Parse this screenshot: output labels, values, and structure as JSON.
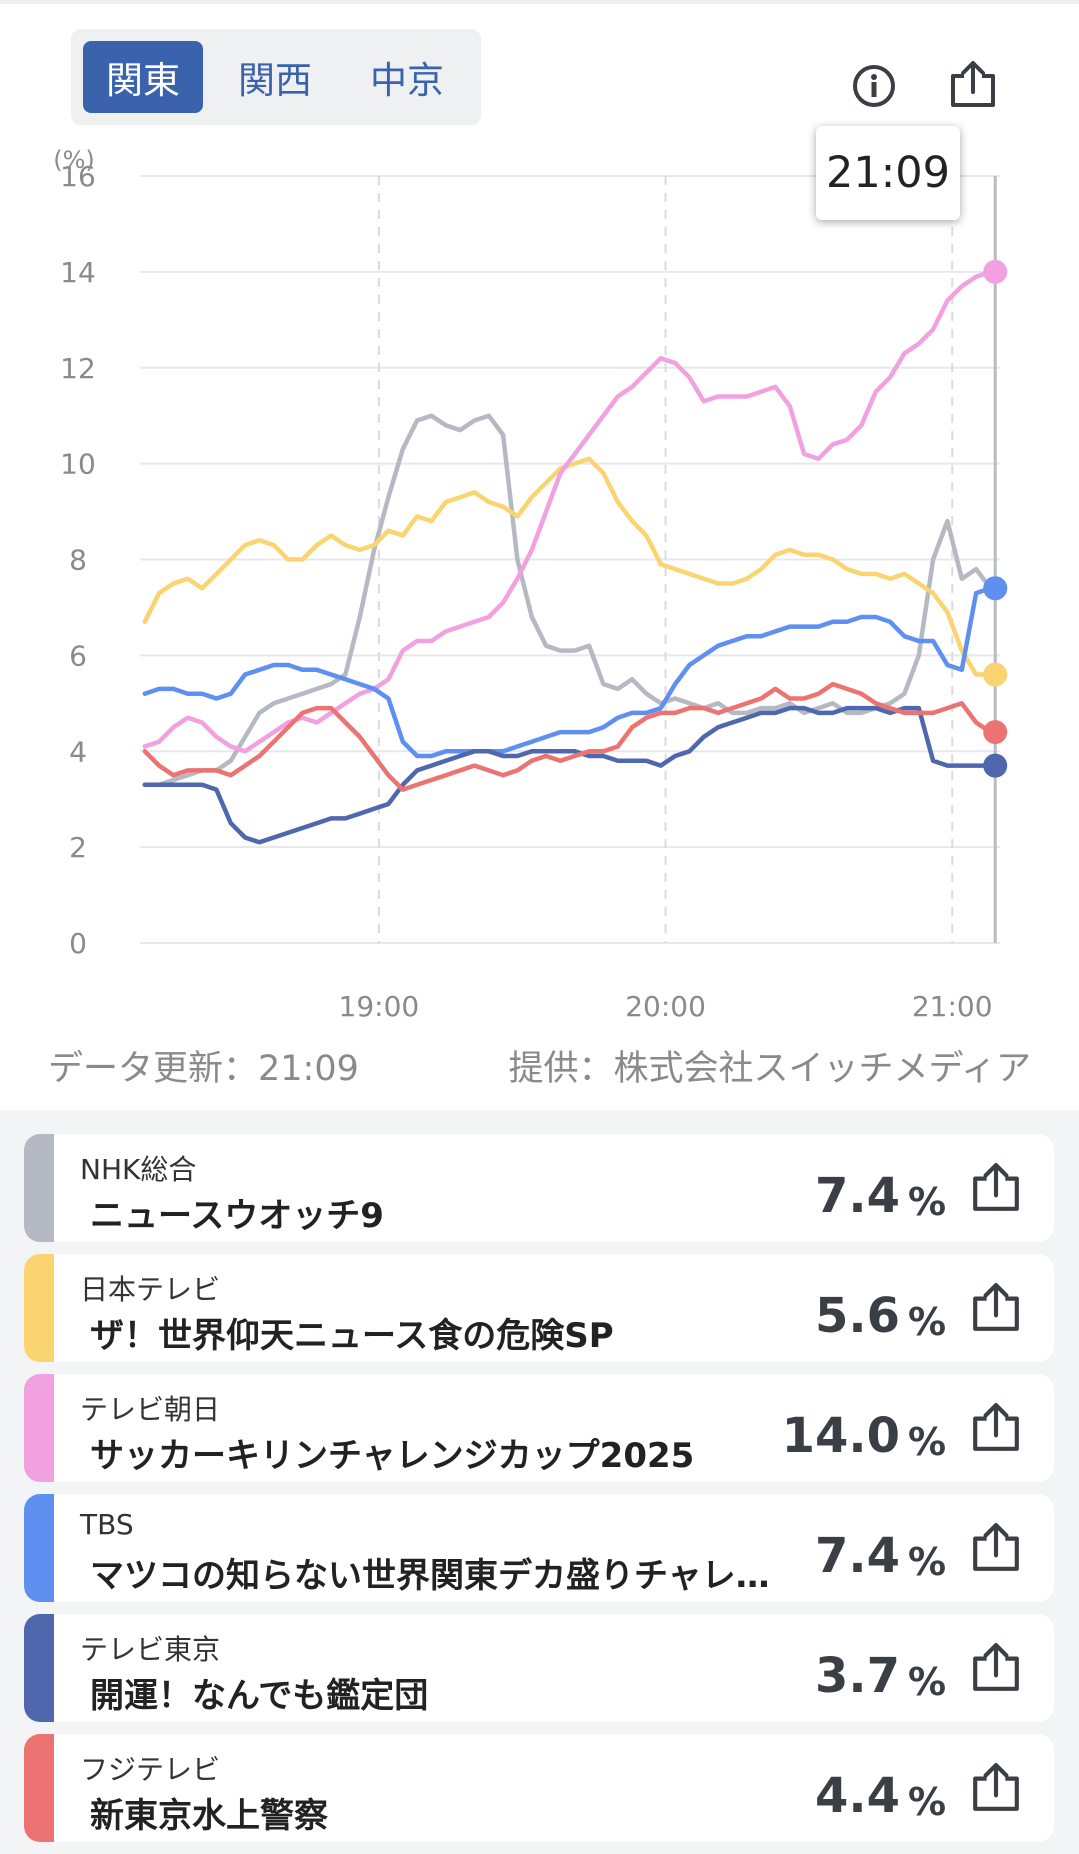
{
  "region_tabs": [
    {
      "label": "関東",
      "active": true
    },
    {
      "label": "関西",
      "active": false
    },
    {
      "label": "中京",
      "active": false
    }
  ],
  "header_icons": {
    "info": "info-icon",
    "share": "share-icon"
  },
  "tooltip_time": "21:09",
  "chart_data": {
    "type": "line",
    "y_unit": "(%)",
    "ylim": [
      0,
      16
    ],
    "yticks": [
      "0",
      "2",
      "4",
      "6",
      "8",
      "10",
      "12",
      "14",
      "16"
    ],
    "xticks": [
      "19:00",
      "20:00",
      "21:00"
    ],
    "x_range_minutes": [
      1090,
      1270
    ],
    "cursor_minute": 1269,
    "grid": true,
    "series": [
      {
        "name": "NHK総合",
        "color": "#b4b9c2",
        "x": [
          1091,
          1094,
          1097,
          1100,
          1103,
          1106,
          1109,
          1112,
          1115,
          1118,
          1121,
          1124,
          1127,
          1130,
          1133,
          1136,
          1139,
          1142,
          1145,
          1148,
          1151,
          1154,
          1157,
          1160,
          1163,
          1166,
          1169,
          1172,
          1175,
          1178,
          1181,
          1184,
          1187,
          1190,
          1193,
          1196,
          1199,
          1202,
          1205,
          1208,
          1211,
          1214,
          1217,
          1220,
          1223,
          1226,
          1229,
          1232,
          1235,
          1238,
          1241,
          1244,
          1247,
          1250,
          1253,
          1256,
          1259,
          1262,
          1265,
          1268
        ],
        "y": [
          3.3,
          3.3,
          3.4,
          3.5,
          3.6,
          3.6,
          3.8,
          4.3,
          4.8,
          5.0,
          5.1,
          5.2,
          5.3,
          5.4,
          5.6,
          6.8,
          8.2,
          9.3,
          10.3,
          10.9,
          11.0,
          10.8,
          10.7,
          10.9,
          11.0,
          10.6,
          8.0,
          6.8,
          6.2,
          6.1,
          6.1,
          6.2,
          5.4,
          5.3,
          5.5,
          5.2,
          5.0,
          5.1,
          5.0,
          4.9,
          5.0,
          4.8,
          4.8,
          4.9,
          4.9,
          5.0,
          4.8,
          4.9,
          5.0,
          4.8,
          4.8,
          4.9,
          5.0,
          5.2,
          6.0,
          8.0,
          8.8,
          7.6,
          7.8,
          7.4
        ]
      },
      {
        "name": "日本テレビ",
        "color": "#fbd472",
        "x": [
          1091,
          1094,
          1097,
          1100,
          1103,
          1106,
          1109,
          1112,
          1115,
          1118,
          1121,
          1124,
          1127,
          1130,
          1133,
          1136,
          1139,
          1142,
          1145,
          1148,
          1151,
          1154,
          1157,
          1160,
          1163,
          1166,
          1169,
          1172,
          1175,
          1178,
          1181,
          1184,
          1187,
          1190,
          1193,
          1196,
          1199,
          1202,
          1205,
          1208,
          1211,
          1214,
          1217,
          1220,
          1223,
          1226,
          1229,
          1232,
          1235,
          1238,
          1241,
          1244,
          1247,
          1250,
          1253,
          1256,
          1259,
          1262,
          1265,
          1268
        ],
        "y": [
          6.7,
          7.3,
          7.5,
          7.6,
          7.4,
          7.7,
          8.0,
          8.3,
          8.4,
          8.3,
          8.0,
          8.0,
          8.3,
          8.5,
          8.3,
          8.2,
          8.3,
          8.6,
          8.5,
          8.9,
          8.8,
          9.2,
          9.3,
          9.4,
          9.2,
          9.1,
          8.9,
          9.3,
          9.6,
          9.9,
          10.0,
          10.1,
          9.8,
          9.2,
          8.8,
          8.5,
          7.9,
          7.8,
          7.7,
          7.6,
          7.5,
          7.5,
          7.6,
          7.8,
          8.1,
          8.2,
          8.1,
          8.1,
          8.0,
          7.8,
          7.7,
          7.7,
          7.6,
          7.7,
          7.5,
          7.3,
          6.9,
          6.1,
          5.6,
          5.6
        ]
      },
      {
        "name": "テレビ朝日",
        "color": "#f2a1e0",
        "x": [
          1091,
          1094,
          1097,
          1100,
          1103,
          1106,
          1109,
          1112,
          1115,
          1118,
          1121,
          1124,
          1127,
          1130,
          1133,
          1136,
          1139,
          1142,
          1145,
          1148,
          1151,
          1154,
          1157,
          1160,
          1163,
          1166,
          1169,
          1172,
          1175,
          1178,
          1181,
          1184,
          1187,
          1190,
          1193,
          1196,
          1199,
          1202,
          1205,
          1208,
          1211,
          1214,
          1217,
          1220,
          1223,
          1226,
          1229,
          1232,
          1235,
          1238,
          1241,
          1244,
          1247,
          1250,
          1253,
          1256,
          1259,
          1262,
          1265,
          1268
        ],
        "y": [
          4.1,
          4.2,
          4.5,
          4.7,
          4.6,
          4.3,
          4.1,
          4.0,
          4.2,
          4.4,
          4.6,
          4.7,
          4.6,
          4.8,
          5.0,
          5.2,
          5.3,
          5.5,
          6.1,
          6.3,
          6.3,
          6.5,
          6.6,
          6.7,
          6.8,
          7.1,
          7.6,
          8.2,
          9.0,
          9.8,
          10.2,
          10.6,
          11.0,
          11.4,
          11.6,
          11.9,
          12.2,
          12.1,
          11.8,
          11.3,
          11.4,
          11.4,
          11.4,
          11.5,
          11.6,
          11.2,
          10.2,
          10.1,
          10.4,
          10.5,
          10.8,
          11.5,
          11.8,
          12.3,
          12.5,
          12.8,
          13.4,
          13.7,
          13.9,
          14.0
        ]
      },
      {
        "name": "TBS",
        "color": "#5f8ff0",
        "x": [
          1091,
          1094,
          1097,
          1100,
          1103,
          1106,
          1109,
          1112,
          1115,
          1118,
          1121,
          1124,
          1127,
          1130,
          1133,
          1136,
          1139,
          1142,
          1145,
          1148,
          1151,
          1154,
          1157,
          1160,
          1163,
          1166,
          1169,
          1172,
          1175,
          1178,
          1181,
          1184,
          1187,
          1190,
          1193,
          1196,
          1199,
          1202,
          1205,
          1208,
          1211,
          1214,
          1217,
          1220,
          1223,
          1226,
          1229,
          1232,
          1235,
          1238,
          1241,
          1244,
          1247,
          1250,
          1253,
          1256,
          1259,
          1262,
          1265,
          1268
        ],
        "y": [
          5.2,
          5.3,
          5.3,
          5.2,
          5.2,
          5.1,
          5.2,
          5.6,
          5.7,
          5.8,
          5.8,
          5.7,
          5.7,
          5.6,
          5.5,
          5.4,
          5.3,
          5.1,
          4.2,
          3.9,
          3.9,
          4.0,
          4.0,
          4.0,
          4.0,
          4.0,
          4.1,
          4.2,
          4.3,
          4.4,
          4.4,
          4.4,
          4.5,
          4.7,
          4.8,
          4.8,
          4.9,
          5.4,
          5.8,
          6.0,
          6.2,
          6.3,
          6.4,
          6.4,
          6.5,
          6.6,
          6.6,
          6.6,
          6.7,
          6.7,
          6.8,
          6.8,
          6.7,
          6.4,
          6.3,
          6.3,
          5.8,
          5.7,
          7.3,
          7.4
        ]
      },
      {
        "name": "テレビ東京",
        "color": "#4f68ad",
        "x": [
          1091,
          1094,
          1097,
          1100,
          1103,
          1106,
          1109,
          1112,
          1115,
          1118,
          1121,
          1124,
          1127,
          1130,
          1133,
          1136,
          1139,
          1142,
          1145,
          1148,
          1151,
          1154,
          1157,
          1160,
          1163,
          1166,
          1169,
          1172,
          1175,
          1178,
          1181,
          1184,
          1187,
          1190,
          1193,
          1196,
          1199,
          1202,
          1205,
          1208,
          1211,
          1214,
          1217,
          1220,
          1223,
          1226,
          1229,
          1232,
          1235,
          1238,
          1241,
          1244,
          1247,
          1250,
          1253,
          1256,
          1259,
          1262,
          1265,
          1268
        ],
        "y": [
          3.3,
          3.3,
          3.3,
          3.3,
          3.3,
          3.2,
          2.5,
          2.2,
          2.1,
          2.2,
          2.3,
          2.4,
          2.5,
          2.6,
          2.6,
          2.7,
          2.8,
          2.9,
          3.3,
          3.6,
          3.7,
          3.8,
          3.9,
          4.0,
          4.0,
          3.9,
          3.9,
          4.0,
          4.0,
          4.0,
          4.0,
          3.9,
          3.9,
          3.8,
          3.8,
          3.8,
          3.7,
          3.9,
          4.0,
          4.3,
          4.5,
          4.6,
          4.7,
          4.8,
          4.8,
          4.9,
          4.9,
          4.8,
          4.8,
          4.9,
          4.9,
          4.9,
          4.8,
          4.9,
          4.9,
          3.8,
          3.7,
          3.7,
          3.7,
          3.7
        ]
      },
      {
        "name": "フジテレビ",
        "color": "#ed7373",
        "x": [
          1091,
          1094,
          1097,
          1100,
          1103,
          1106,
          1109,
          1112,
          1115,
          1118,
          1121,
          1124,
          1127,
          1130,
          1133,
          1136,
          1139,
          1142,
          1145,
          1148,
          1151,
          1154,
          1157,
          1160,
          1163,
          1166,
          1169,
          1172,
          1175,
          1178,
          1181,
          1184,
          1187,
          1190,
          1193,
          1196,
          1199,
          1202,
          1205,
          1208,
          1211,
          1214,
          1217,
          1220,
          1223,
          1226,
          1229,
          1232,
          1235,
          1238,
          1241,
          1244,
          1247,
          1250,
          1253,
          1256,
          1259,
          1262,
          1265,
          1268
        ],
        "y": [
          4.0,
          3.7,
          3.5,
          3.6,
          3.6,
          3.6,
          3.5,
          3.7,
          3.9,
          4.2,
          4.5,
          4.8,
          4.9,
          4.9,
          4.6,
          4.3,
          3.9,
          3.5,
          3.2,
          3.3,
          3.4,
          3.5,
          3.6,
          3.7,
          3.6,
          3.5,
          3.6,
          3.8,
          3.9,
          3.8,
          3.9,
          4.0,
          4.0,
          4.1,
          4.5,
          4.7,
          4.8,
          4.8,
          4.9,
          4.9,
          4.8,
          4.9,
          5.0,
          5.1,
          5.3,
          5.1,
          5.1,
          5.2,
          5.4,
          5.3,
          5.2,
          5.0,
          4.9,
          4.8,
          4.8,
          4.8,
          4.9,
          5.0,
          4.6,
          4.4
        ]
      }
    ]
  },
  "footer": {
    "updated": "データ更新：21:09",
    "provider": "提供：株式会社スイッチメディア"
  },
  "programs": [
    {
      "channel": "NHK総合",
      "title": "ニュースウオッチ9",
      "rating": "7.4",
      "unit": "%",
      "color": "#b4b9c2"
    },
    {
      "channel": "日本テレビ",
      "title": "ザ！世界仰天ニュース食の危険SP",
      "rating": "5.6",
      "unit": "%",
      "color": "#fbd472"
    },
    {
      "channel": "テレビ朝日",
      "title": "サッカーキリンチャレンジカップ2025",
      "rating": "14.0",
      "unit": "%",
      "color": "#f2a1e0"
    },
    {
      "channel": "TBS",
      "title": "マツコの知らない世界関東デカ盛りチャレ…",
      "rating": "7.4",
      "unit": "%",
      "color": "#5f8ff0"
    },
    {
      "channel": "テレビ東京",
      "title": "開運！なんでも鑑定団",
      "rating": "3.7",
      "unit": "%",
      "color": "#4f68ad"
    },
    {
      "channel": "フジテレビ",
      "title": "新東京水上警察",
      "rating": "4.4",
      "unit": "%",
      "color": "#ed7373"
    }
  ]
}
